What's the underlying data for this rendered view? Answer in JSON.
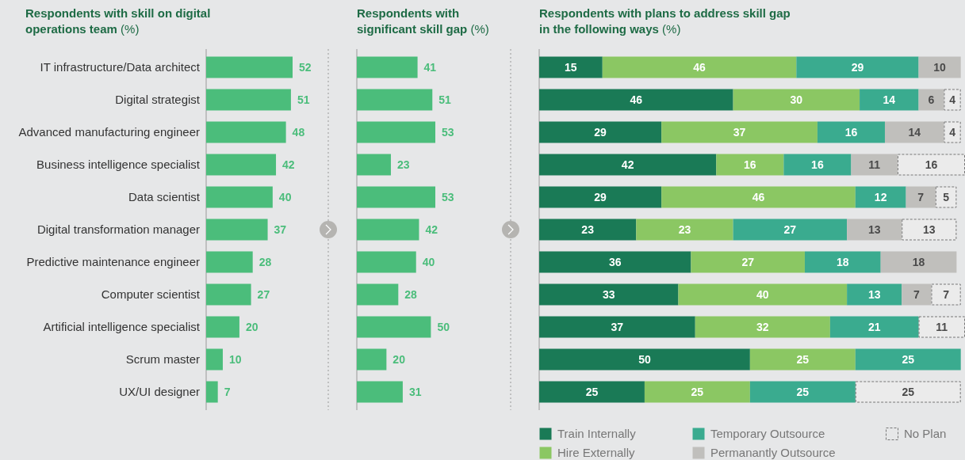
{
  "chart_data": [
    {
      "type": "bar",
      "orientation": "horizontal",
      "title": "Respondents with skill on digital operations team (%)",
      "categories": [
        "IT infrastructure/Data architect",
        "Digital strategist",
        "Advanced manufacturing engineer",
        "Business intelligence specialist",
        "Data scientist",
        "Digital transformation manager",
        "Predictive maintenance engineer",
        "Computer scientist",
        "Artificial intelligence specialist",
        "Scrum master",
        "UX/UI designer"
      ],
      "values": [
        52,
        51,
        48,
        42,
        40,
        37,
        28,
        27,
        20,
        10,
        7
      ],
      "color": "#4bbd7b",
      "data_labels": true
    },
    {
      "type": "bar",
      "orientation": "horizontal",
      "title": "Respondents with significant skill gap (%)",
      "categories": [
        null,
        null,
        null,
        null,
        null,
        null,
        null,
        null,
        null,
        null,
        null
      ],
      "values": [
        41,
        51,
        53,
        23,
        53,
        42,
        40,
        28,
        50,
        20,
        31
      ],
      "color": "#4bbd7b",
      "data_labels": true
    },
    {
      "type": "bar",
      "orientation": "horizontal",
      "stacked": true,
      "title": "Respondents with plans to address skill gap in the following ways (%)",
      "categories": [
        null,
        null,
        null,
        null,
        null,
        null,
        null,
        null,
        null,
        null,
        null
      ],
      "data_labels": true,
      "legend": "bottom",
      "series": [
        {
          "name": "Train Internally",
          "color": "#1a7a56",
          "values": [
            15,
            46,
            29,
            42,
            29,
            23,
            36,
            33,
            37,
            50,
            25
          ]
        },
        {
          "name": "Hire Externally",
          "color": "#8bc763",
          "values": [
            46,
            30,
            37,
            16,
            46,
            23,
            27,
            40,
            32,
            25,
            25
          ]
        },
        {
          "name": "Temporary Outsource",
          "color": "#3aab8f",
          "values": [
            29,
            14,
            16,
            16,
            12,
            27,
            18,
            13,
            21,
            25,
            25
          ]
        },
        {
          "name": "Permanantly Outsource",
          "color": "#c0bfbc",
          "values": [
            10,
            6,
            14,
            11,
            7,
            13,
            18,
            7,
            null,
            null,
            null
          ]
        },
        {
          "name": "No Plan",
          "color": "#ebebeb",
          "line_style": "dashed",
          "values": [
            null,
            4,
            4,
            16,
            5,
            13,
            null,
            7,
            11,
            null,
            25
          ]
        }
      ]
    }
  ]
}
